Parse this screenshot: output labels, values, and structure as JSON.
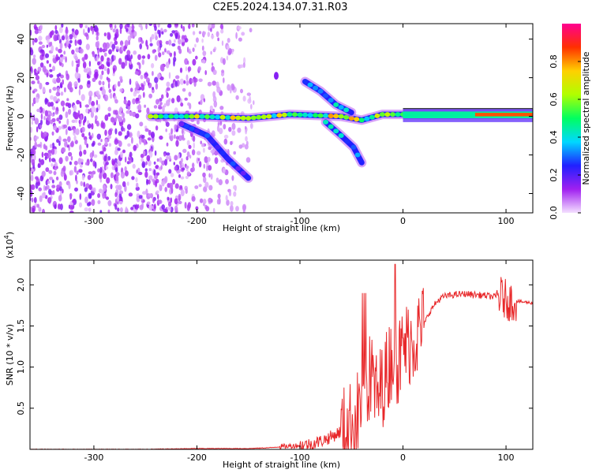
{
  "title": "C2E5.2024.134.07.31.R03",
  "chart_data": [
    {
      "type": "heatmap",
      "xlabel": "Height of straight line (km)",
      "ylabel": "Frequency (Hz)",
      "xlim": [
        -362,
        126
      ],
      "ylim": [
        -50,
        48
      ],
      "x_ticks": [
        -300,
        -200,
        -100,
        0,
        100
      ],
      "x_tick_labels": [
        "-300",
        "-200",
        "-100",
        "0",
        "100"
      ],
      "y_ticks": [
        -40,
        -20,
        0,
        20,
        40
      ],
      "y_tick_labels": [
        "-40",
        "-20",
        "0",
        "20",
        "40"
      ],
      "colorbar": {
        "label": "Normalized spectral amplitude",
        "range": [
          0,
          1
        ],
        "ticks": [
          0.0,
          0.2,
          0.4,
          0.6,
          0.8
        ],
        "tick_labels": [
          "0.0",
          "0.2",
          "0.4",
          "0.6",
          "0.8"
        ],
        "colormap": [
          "#f4e0ff",
          "#a020f0",
          "#2020ff",
          "#00d8ff",
          "#00ff60",
          "#b0ff00",
          "#ffd000",
          "#ff3000",
          "#ff0090"
        ]
      },
      "features": [
        {
          "name": "main-line",
          "points": [
            [
              -245,
              0
            ],
            [
              -200,
              0
            ],
            [
              -150,
              -1
            ],
            [
              -110,
              1
            ],
            [
              -60,
              0
            ],
            [
              -40,
              -2
            ],
            [
              -20,
              1
            ],
            [
              0,
              1
            ],
            [
              50,
              1
            ],
            [
              126,
              1
            ]
          ],
          "level": 0.8
        },
        {
          "name": "lower-branch",
          "points": [
            [
              -215,
              -4
            ],
            [
              -190,
              -10
            ],
            [
              -170,
              -22
            ],
            [
              -150,
              -32
            ]
          ],
          "level": 0.3
        },
        {
          "name": "upper-branch",
          "points": [
            [
              -95,
              18
            ],
            [
              -80,
              13
            ],
            [
              -65,
              6
            ],
            [
              -50,
              2
            ]
          ],
          "level": 0.45
        },
        {
          "name": "descending-branch",
          "points": [
            [
              -75,
              -3
            ],
            [
              -60,
              -10
            ],
            [
              -48,
              -16
            ],
            [
              -40,
              -24
            ]
          ],
          "level": 0.45
        },
        {
          "name": "isolated-spot",
          "points": [
            [
              -123,
              21
            ]
          ],
          "level": 0.15
        }
      ],
      "noise_region": {
        "x": [
          -362,
          -140
        ],
        "y": [
          -50,
          48
        ]
      }
    },
    {
      "type": "line",
      "xlabel": "Height of straight line (km)",
      "ylabel": "SNR (10 * v/v)",
      "y_multiplier_label": "(x10",
      "y_multiplier_exp": "4",
      "xlim": [
        -362,
        126
      ],
      "ylim": [
        0,
        2.3
      ],
      "x_ticks": [
        -300,
        -200,
        -100,
        0,
        100
      ],
      "x_tick_labels": [
        "-300",
        "-200",
        "-100",
        "0",
        "100"
      ],
      "y_ticks": [
        0.5,
        1.0,
        1.5,
        2.0
      ],
      "y_tick_labels": [
        "0.5",
        "1.0",
        "1.5",
        "2.0"
      ],
      "color": "#e8282a",
      "series": [
        {
          "x": [
            -362,
            -300,
            -250,
            -200,
            -150,
            -130,
            -110,
            -90,
            -80,
            -70,
            -60,
            -50,
            -45,
            -40,
            -35,
            -30,
            -25,
            -20,
            -15,
            -10,
            -5,
            0,
            5,
            10,
            15,
            20,
            25,
            30,
            35,
            40,
            50,
            60,
            70,
            80,
            90,
            95,
            100,
            105,
            110,
            126
          ],
          "values": [
            0.0,
            0.0,
            0.0,
            0.01,
            0.01,
            0.02,
            0.04,
            0.06,
            0.1,
            0.15,
            0.22,
            0.3,
            0.4,
            0.6,
            0.8,
            0.9,
            0.6,
            0.8,
            0.95,
            1.2,
            1.05,
            1.2,
            1.3,
            1.35,
            1.4,
            1.5,
            1.65,
            1.75,
            1.82,
            1.86,
            1.88,
            1.89,
            1.88,
            1.87,
            1.85,
            1.86,
            1.82,
            1.8,
            1.8,
            1.78
          ]
        }
      ]
    }
  ]
}
